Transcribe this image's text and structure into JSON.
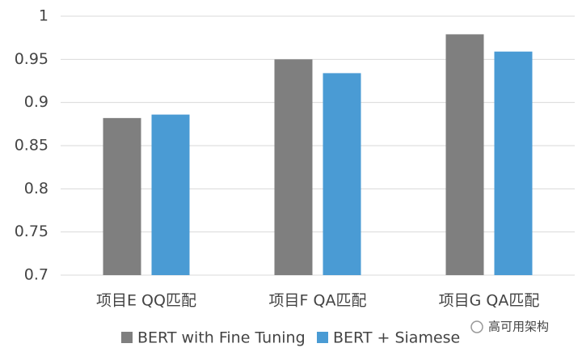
{
  "chart_data": {
    "type": "bar",
    "categories": [
      "项目E QQ匹配",
      "项目F QA匹配",
      "项目G QA匹配"
    ],
    "series": [
      {
        "name": "BERT with Fine Tuning",
        "color": "#7f7f7f",
        "values": [
          0.882,
          0.95,
          0.979
        ]
      },
      {
        "name": "BERT + Siamese",
        "color": "#4a9bd4",
        "values": [
          0.886,
          0.934,
          0.959
        ]
      }
    ],
    "ylim": [
      0.7,
      1
    ],
    "yticks": [
      0.7,
      0.75,
      0.8,
      0.85,
      0.9,
      0.95,
      1
    ],
    "grid": true,
    "legend": "bottom",
    "watermark": "高可用架构"
  }
}
